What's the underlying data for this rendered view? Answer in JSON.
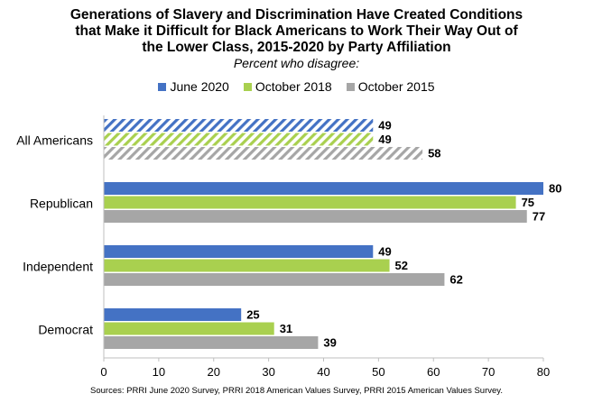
{
  "chart_data": {
    "type": "bar",
    "orientation": "horizontal",
    "title_lines": [
      "Generations of Slavery and Discrimination Have Created Conditions",
      "that Make it Difficult for Black Americans to Work Their Way Out of",
      "the Lower Class, 2015-2020 by Party Affiliation"
    ],
    "subtitle": "Percent who disagree:",
    "categories": [
      "All Americans",
      "Republican",
      "Independent",
      "Democrat"
    ],
    "series": [
      {
        "name": "June 2020",
        "color": "#4472c4",
        "values": [
          49,
          80,
          49,
          25
        ]
      },
      {
        "name": "October 2018",
        "color": "#a9d04f",
        "values": [
          49,
          75,
          52,
          31
        ]
      },
      {
        "name": "October 2015",
        "color": "#a6a6a6",
        "values": [
          58,
          77,
          62,
          39
        ]
      }
    ],
    "hatched_category": "All Americans",
    "xlim": [
      0,
      80
    ],
    "xticks": [
      "0",
      "10",
      "20",
      "30",
      "40",
      "50",
      "60",
      "70",
      "80"
    ],
    "legend_position": "top",
    "grid": false,
    "source": "Sources: PRRI June 2020 Survey, PRRI 2018 American Values Survey, PRRI 2015 American Values Survey."
  }
}
